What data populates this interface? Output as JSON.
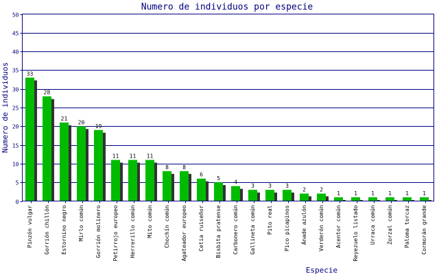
{
  "chart_data": {
    "type": "bar",
    "title": "Numero de individuos por especie",
    "xlabel": "Especie",
    "ylabel": "Numero de individuos",
    "ylim": [
      0,
      50
    ],
    "yticks": [
      0,
      5,
      10,
      15,
      20,
      25,
      30,
      35,
      40,
      45,
      50
    ],
    "grid": true,
    "categories": [
      "Pinzón vulgar",
      "Gorrión chillón",
      "Estornino negro",
      "Mirlo común",
      "Gorrión molinero",
      "Petirrojo europeo",
      "Herrerillo común",
      "Mito común",
      "Chochín común",
      "Agateador europeo",
      "Cetia ruiseñor",
      "Bisbita pratense",
      "Carbonero común",
      "Gallineta común",
      "Pito real",
      "Pico picapinos",
      "Ánade azulón",
      "Verderón común",
      "Acentor común",
      "Reyezuelo listado",
      "Urraca común",
      "Zorzal común",
      "Paloma torcaz",
      "Cormorán grande"
    ],
    "values": [
      33,
      28,
      21,
      20,
      19,
      11,
      11,
      11,
      8,
      8,
      6,
      5,
      4,
      3,
      3,
      3,
      2,
      2,
      1,
      1,
      1,
      1,
      1,
      1
    ],
    "colors": {
      "bar": "#00bb00",
      "shadow": "#333333",
      "frame": "#000080",
      "grid": "#000080",
      "label": "#000080"
    }
  }
}
